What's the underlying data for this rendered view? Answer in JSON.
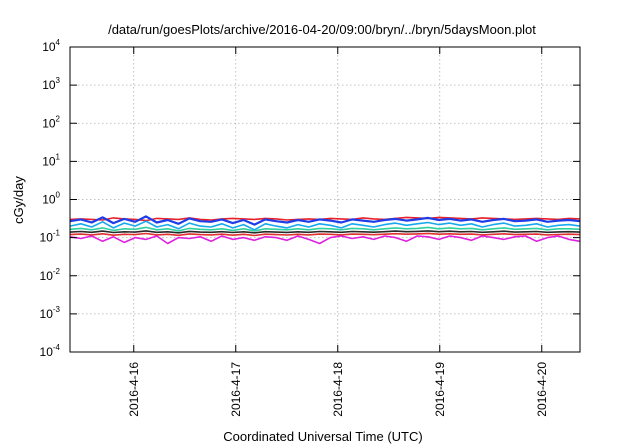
{
  "chart_data": {
    "type": "line",
    "title": "/data/run/goesPlots/archive/2016-04-20/09:00/bryn/../bryn/5daysMoon.plot",
    "xlabel": "Coordinated Universal Time (UTC)",
    "ylabel": "cGy/day",
    "yscale": "log",
    "ylim": [
      0.0001,
      10000
    ],
    "xlim": [
      "2016-04-15 09:00",
      "2016-04-20 09:00"
    ],
    "grid": true,
    "legend": "none",
    "y_ticks": [
      {
        "value": 0.0001,
        "base": "10",
        "exp": "-4"
      },
      {
        "value": 0.001,
        "base": "10",
        "exp": "-3"
      },
      {
        "value": 0.01,
        "base": "10",
        "exp": "-2"
      },
      {
        "value": 0.1,
        "base": "10",
        "exp": "-1"
      },
      {
        "value": 1,
        "base": "10",
        "exp": "0"
      },
      {
        "value": 10,
        "base": "10",
        "exp": "1"
      },
      {
        "value": 100,
        "base": "10",
        "exp": "2"
      },
      {
        "value": 1000,
        "base": "10",
        "exp": "3"
      },
      {
        "value": 10000,
        "base": "10",
        "exp": "4"
      }
    ],
    "x_ticks": [
      "2016-4-16",
      "2016-4-17",
      "2016-4-18",
      "2016-4-19",
      "2016-4-20"
    ],
    "series": [
      {
        "color": "#e8202a",
        "values": [
          0.3,
          0.31,
          0.3,
          0.29,
          0.33,
          0.31,
          0.3,
          0.28,
          0.32,
          0.31,
          0.3,
          0.33,
          0.3,
          0.29,
          0.31,
          0.32,
          0.31,
          0.3,
          0.32,
          0.31,
          0.29,
          0.3,
          0.31,
          0.3,
          0.32,
          0.31,
          0.3,
          0.33,
          0.31,
          0.3,
          0.32,
          0.34,
          0.33,
          0.32,
          0.34,
          0.33,
          0.32,
          0.31,
          0.33,
          0.32,
          0.31,
          0.3,
          0.31,
          0.32,
          0.31,
          0.3,
          0.32,
          0.31
        ]
      },
      {
        "color": "#1e3ce8",
        "values": [
          0.27,
          0.3,
          0.25,
          0.34,
          0.24,
          0.31,
          0.26,
          0.36,
          0.25,
          0.29,
          0.23,
          0.32,
          0.27,
          0.26,
          0.3,
          0.24,
          0.29,
          0.22,
          0.3,
          0.27,
          0.25,
          0.29,
          0.26,
          0.3,
          0.28,
          0.25,
          0.3,
          0.28,
          0.26,
          0.29,
          0.31,
          0.28,
          0.3,
          0.33,
          0.29,
          0.31,
          0.28,
          0.3,
          0.26,
          0.29,
          0.31,
          0.27,
          0.28,
          0.3,
          0.26,
          0.28,
          0.29,
          0.27
        ]
      },
      {
        "color": "#18a8f0",
        "values": [
          0.2,
          0.23,
          0.19,
          0.26,
          0.18,
          0.24,
          0.2,
          0.27,
          0.19,
          0.22,
          0.17,
          0.24,
          0.2,
          0.19,
          0.23,
          0.18,
          0.22,
          0.16,
          0.23,
          0.2,
          0.18,
          0.22,
          0.19,
          0.23,
          0.21,
          0.18,
          0.23,
          0.21,
          0.19,
          0.22,
          0.24,
          0.21,
          0.23,
          0.25,
          0.22,
          0.24,
          0.21,
          0.23,
          0.19,
          0.22,
          0.24,
          0.2,
          0.21,
          0.23,
          0.19,
          0.21,
          0.22,
          0.2
        ]
      },
      {
        "color": "#30d0a0",
        "values": [
          0.165,
          0.175,
          0.16,
          0.18,
          0.155,
          0.17,
          0.165,
          0.185,
          0.16,
          0.17,
          0.15,
          0.175,
          0.165,
          0.16,
          0.17,
          0.155,
          0.17,
          0.15,
          0.17,
          0.165,
          0.16,
          0.17,
          0.16,
          0.175,
          0.17,
          0.16,
          0.175,
          0.17,
          0.16,
          0.17,
          0.18,
          0.17,
          0.175,
          0.185,
          0.17,
          0.18,
          0.17,
          0.175,
          0.16,
          0.17,
          0.18,
          0.165,
          0.17,
          0.175,
          0.16,
          0.17,
          0.17,
          0.165
        ]
      },
      {
        "color": "#2a2a2a",
        "values": [
          0.14,
          0.145,
          0.138,
          0.148,
          0.136,
          0.142,
          0.14,
          0.15,
          0.138,
          0.142,
          0.134,
          0.146,
          0.14,
          0.138,
          0.143,
          0.136,
          0.142,
          0.134,
          0.143,
          0.14,
          0.137,
          0.142,
          0.138,
          0.145,
          0.142,
          0.138,
          0.145,
          0.142,
          0.139,
          0.143,
          0.148,
          0.143,
          0.146,
          0.15,
          0.143,
          0.147,
          0.142,
          0.145,
          0.138,
          0.142,
          0.147,
          0.14,
          0.142,
          0.145,
          0.138,
          0.141,
          0.143,
          0.14
        ]
      },
      {
        "color": "#e03030",
        "values": [
          0.12,
          0.124,
          0.118,
          0.126,
          0.116,
          0.122,
          0.12,
          0.128,
          0.118,
          0.122,
          0.115,
          0.125,
          0.12,
          0.118,
          0.123,
          0.116,
          0.122,
          0.114,
          0.123,
          0.12,
          0.117,
          0.122,
          0.118,
          0.124,
          0.122,
          0.118,
          0.124,
          0.122,
          0.119,
          0.123,
          0.127,
          0.123,
          0.125,
          0.129,
          0.123,
          0.126,
          0.122,
          0.124,
          0.118,
          0.122,
          0.126,
          0.12,
          0.122,
          0.124,
          0.118,
          0.121,
          0.123,
          0.12
        ]
      },
      {
        "color": "#e020e0",
        "values": [
          0.105,
          0.095,
          0.11,
          0.08,
          0.105,
          0.075,
          0.1,
          0.09,
          0.11,
          0.07,
          0.1,
          0.095,
          0.105,
          0.08,
          0.11,
          0.09,
          0.1,
          0.085,
          0.105,
          0.1,
          0.085,
          0.11,
          0.09,
          0.07,
          0.1,
          0.11,
          0.095,
          0.105,
          0.09,
          0.11,
          0.1,
          0.08,
          0.11,
          0.105,
          0.09,
          0.11,
          0.1,
          0.085,
          0.11,
          0.1,
          0.09,
          0.105,
          0.11,
          0.08,
          0.1,
          0.11,
          0.09,
          0.08
        ]
      }
    ]
  }
}
